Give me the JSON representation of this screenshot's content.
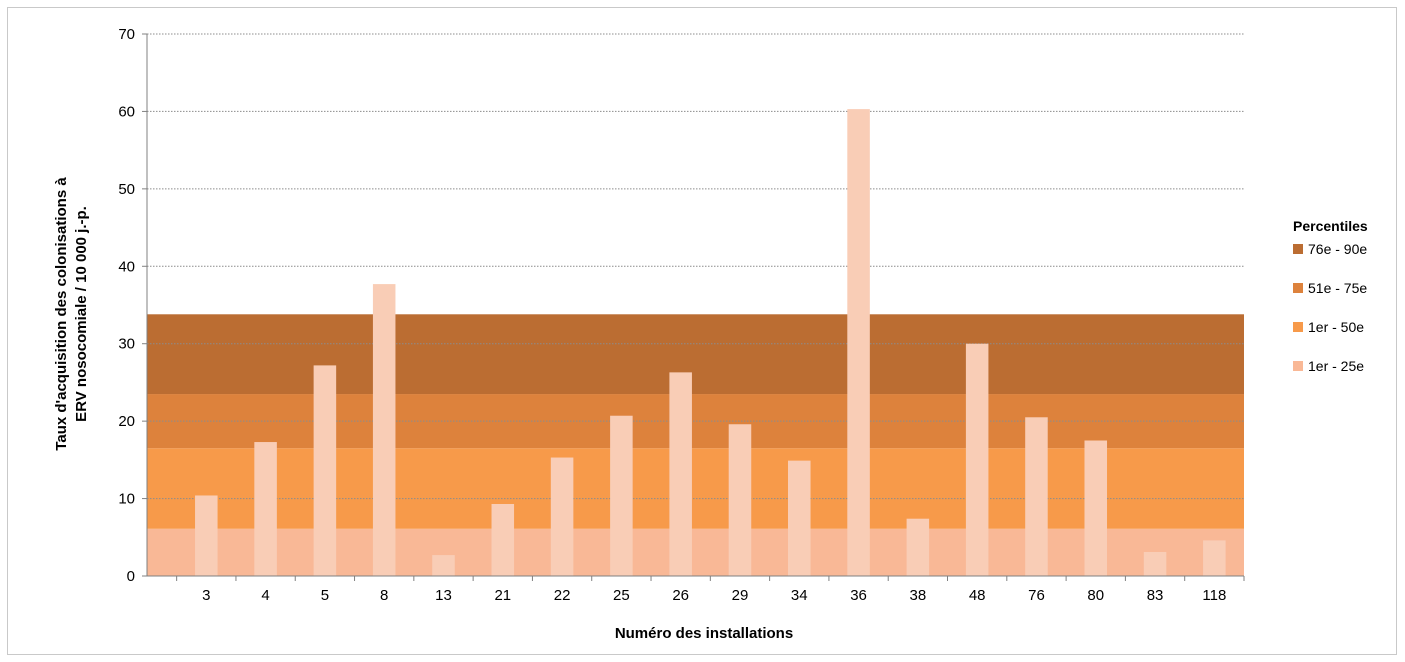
{
  "chart_data": {
    "type": "bar",
    "title": "",
    "xlabel": "Numéro des installations",
    "ylabel_lines": [
      "Taux d'acquisition des colonisations à",
      "ERV nosocomiale / 10 000 j.-p."
    ],
    "ylim": [
      0,
      70
    ],
    "yticks": [
      0,
      10,
      20,
      30,
      40,
      50,
      60,
      70
    ],
    "grid": true,
    "categories": [
      "3",
      "4",
      "5",
      "8",
      "13",
      "21",
      "22",
      "25",
      "26",
      "29",
      "34",
      "36",
      "38",
      "48",
      "76",
      "80",
      "83",
      "118"
    ],
    "values": [
      10.4,
      17.3,
      27.2,
      37.7,
      2.7,
      9.3,
      15.3,
      20.7,
      26.3,
      19.6,
      14.9,
      60.3,
      7.4,
      30.0,
      20.5,
      17.5,
      3.1,
      4.6
    ],
    "bar_color": "#f9cdb6",
    "bands": [
      {
        "label": "1er - 25e",
        "from": 0,
        "to": 6.1,
        "color": "#f9b896"
      },
      {
        "label": "1er - 50e",
        "from": 6.1,
        "to": 16.5,
        "color": "#f79a4a"
      },
      {
        "label": "51e - 75e",
        "from": 16.5,
        "to": 23.5,
        "color": "#dd823c"
      },
      {
        "label": "76e - 90e",
        "from": 23.5,
        "to": 33.8,
        "color": "#bb6d32"
      }
    ],
    "legend": {
      "title": "Percentiles",
      "position": "right",
      "entries": [
        {
          "label": "76e - 90e",
          "color": "#bb6d32"
        },
        {
          "label": "51e - 75e",
          "color": "#dd823c"
        },
        {
          "label": "1er - 50e",
          "color": "#f79a4a"
        },
        {
          "label": "1er - 25e",
          "color": "#f9b896"
        }
      ]
    }
  }
}
